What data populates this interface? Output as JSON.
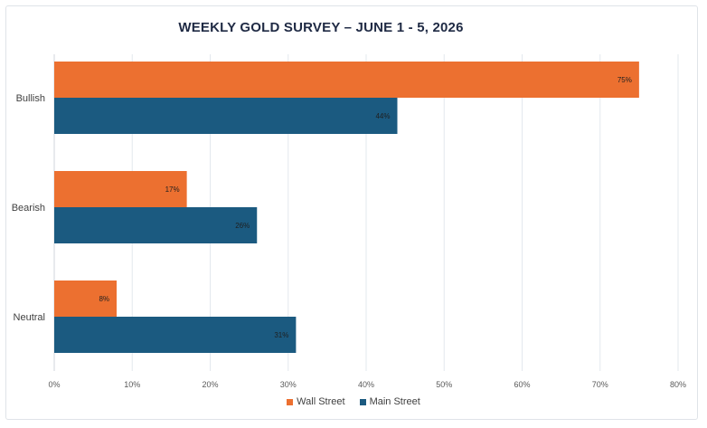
{
  "chart_data": {
    "type": "bar",
    "orientation": "horizontal",
    "title": "WEEKLY GOLD SURVEY – JUNE 1 - 5, 2026",
    "categories": [
      "Bullish",
      "Bearish",
      "Neutral"
    ],
    "series": [
      {
        "name": "Wall Street",
        "color": "#ec7030",
        "values": [
          75,
          17,
          8
        ],
        "labels": [
          "75%",
          "17%",
          "8%"
        ]
      },
      {
        "name": "Main Street",
        "color": "#1b5a80",
        "values": [
          44,
          26,
          31
        ],
        "labels": [
          "44%",
          "26%",
          "31%"
        ]
      }
    ],
    "x_ticks": [
      "0%",
      "10%",
      "20%",
      "30%",
      "40%",
      "50%",
      "60%",
      "70%",
      "80%"
    ],
    "xlim": [
      0,
      80
    ],
    "grid": true,
    "legend_position": "bottom"
  }
}
